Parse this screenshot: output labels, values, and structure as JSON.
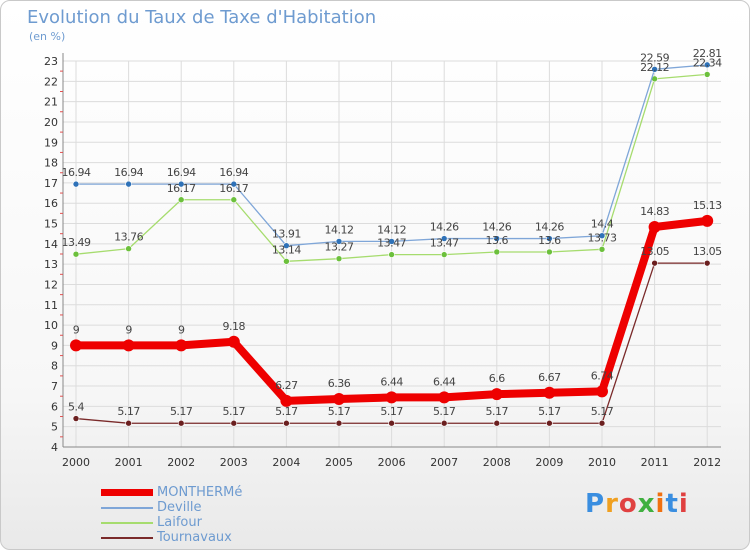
{
  "title": "Evolution du Taux de Taxe d'Habitation",
  "unit_label": "(en %)",
  "logo": "Proxiti",
  "colors": {
    "title": "#6e9bd0",
    "grid": "#dcdcdc",
    "axis": "#888888",
    "tick_label": "#333333",
    "value_label": "#444444"
  },
  "chart_data": {
    "type": "line",
    "title": "Evolution du Taux de Taxe d'Habitation",
    "ylabel": "(en %)",
    "xlabel": "",
    "categories": [
      "2000",
      "2001",
      "2002",
      "2003",
      "2004",
      "2005",
      "2006",
      "2007",
      "2008",
      "2009",
      "2010",
      "2011",
      "2012"
    ],
    "ylim": [
      4,
      23
    ],
    "yticks": [
      4,
      5,
      6,
      7,
      8,
      9,
      10,
      11,
      12,
      13,
      14,
      15,
      16,
      17,
      18,
      19,
      20,
      21,
      22,
      23
    ],
    "grid": true,
    "legend_position": "bottom-left",
    "series": [
      {
        "name": "MONTHERMé",
        "color": "#ee0000",
        "marker_color": "#ee0000",
        "emphasis": true,
        "values": [
          9,
          9,
          9,
          9.18,
          6.27,
          6.36,
          6.44,
          6.44,
          6.6,
          6.67,
          6.74,
          14.83,
          15.13
        ],
        "labels": [
          "9",
          "9",
          "9",
          "9.18",
          "6.27",
          "6.36",
          "6.44",
          "6.44",
          "6.6",
          "6.67",
          "6.74",
          "14.83",
          "15.13"
        ]
      },
      {
        "name": "Deville",
        "color": "#7fa6d8",
        "marker_color": "#2f72b8",
        "emphasis": false,
        "values": [
          16.94,
          16.94,
          16.94,
          16.94,
          13.91,
          14.12,
          14.12,
          14.26,
          14.26,
          14.26,
          14.4,
          22.59,
          22.81
        ],
        "labels": [
          "16.94",
          "16.94",
          "16.94",
          "16.94",
          "13.91",
          "14.12",
          "14.12",
          "14.26",
          "14.26",
          "14.26",
          "14.4",
          "22.59",
          "22.81"
        ]
      },
      {
        "name": "Laifour",
        "color": "#a6dc6e",
        "marker_color": "#6cc03c",
        "emphasis": false,
        "values": [
          13.49,
          13.76,
          16.17,
          16.17,
          13.14,
          13.27,
          13.47,
          13.47,
          13.6,
          13.6,
          13.73,
          22.12,
          22.34
        ],
        "labels": [
          "13.49",
          "13.76",
          "16.17",
          "16.17",
          "13.14",
          "13.27",
          "13.47",
          "13.47",
          "13.6",
          "13.6",
          "13.73",
          "22.12",
          "22.34"
        ]
      },
      {
        "name": "Tournavaux",
        "color": "#7a2a2a",
        "marker_color": "#6b1f1f",
        "emphasis": false,
        "values": [
          5.4,
          5.17,
          5.17,
          5.17,
          5.17,
          5.17,
          5.17,
          5.17,
          5.17,
          5.17,
          5.17,
          13.05,
          13.05
        ],
        "labels": [
          "5.4",
          "5.17",
          "5.17",
          "5.17",
          "5.17",
          "5.17",
          "5.17",
          "5.17",
          "5.17",
          "5.17",
          "5.17",
          "13.05",
          "13.05"
        ]
      }
    ]
  }
}
